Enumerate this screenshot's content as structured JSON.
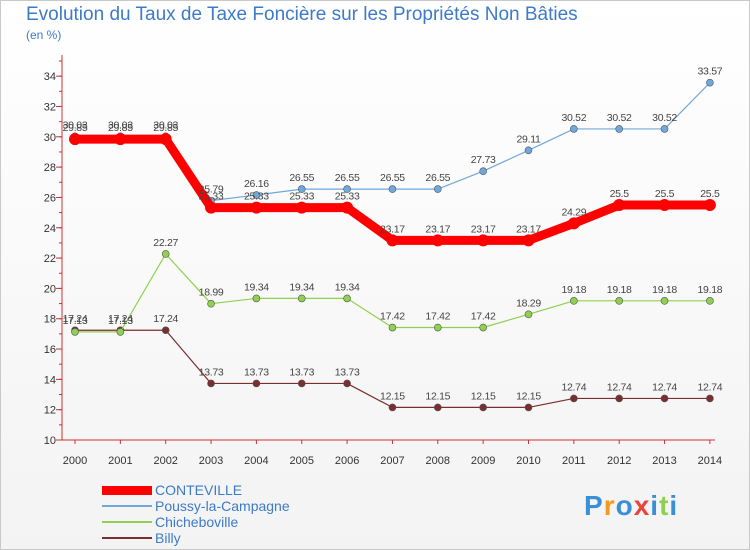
{
  "chart_data": {
    "type": "line",
    "title": "Evolution du Taux de Taxe Foncière sur les Propriétés Non Bâties",
    "ylabel": "(en %)",
    "xlabel": "",
    "ylim": [
      10,
      35
    ],
    "yticks": [
      10,
      12,
      14,
      16,
      18,
      20,
      22,
      24,
      26,
      28,
      30,
      32,
      34
    ],
    "categories": [
      "2000",
      "2001",
      "2002",
      "2003",
      "2004",
      "2005",
      "2006",
      "2007",
      "2008",
      "2009",
      "2010",
      "2011",
      "2012",
      "2013",
      "2014"
    ],
    "series": [
      {
        "name": "CONTEVILLE",
        "color": "#ff0000",
        "values": [
          29.85,
          29.85,
          29.85,
          25.33,
          25.33,
          25.33,
          25.33,
          23.17,
          23.17,
          23.17,
          23.17,
          24.29,
          25.5,
          25.5,
          25.5
        ],
        "labels": [
          "29.85",
          "29.85",
          "29.85",
          "25.33",
          "25.33",
          "25.33",
          "25.33",
          "23.17",
          "23.17",
          "23.17",
          "23.17",
          "24.29",
          "25.5",
          "25.5",
          "25.5"
        ]
      },
      {
        "name": "Poussy-la-Campagne",
        "color": "#6fa8dc",
        "values": [
          30.03,
          30.03,
          30.03,
          25.79,
          26.16,
          26.55,
          26.55,
          26.55,
          26.55,
          27.73,
          29.11,
          30.52,
          30.52,
          30.52,
          33.57
        ],
        "labels": [
          "30.03",
          "30.03",
          "30.03",
          "25.79",
          "26.16",
          "26.55",
          "26.55",
          "26.55",
          "26.55",
          "27.73",
          "29.11",
          "30.52",
          "30.52",
          "30.52",
          "33.57"
        ]
      },
      {
        "name": "Chicheboville",
        "color": "#8fd14f",
        "values": [
          17.13,
          17.13,
          22.27,
          18.99,
          19.34,
          19.34,
          19.34,
          17.42,
          17.42,
          17.42,
          18.29,
          19.18,
          19.18,
          19.18,
          19.18
        ],
        "labels": [
          "17.13",
          "17.13",
          "22.27",
          "18.99",
          "19.34",
          "19.34",
          "19.34",
          "17.42",
          "17.42",
          "17.42",
          "18.29",
          "19.18",
          "19.18",
          "19.18",
          "19.18"
        ]
      },
      {
        "name": "Billy",
        "color": "#7a2e2e",
        "values": [
          17.24,
          17.24,
          17.24,
          13.73,
          13.73,
          13.73,
          13.73,
          12.15,
          12.15,
          12.15,
          12.15,
          12.74,
          12.74,
          12.74,
          12.74
        ],
        "labels": [
          "17.24",
          "17.24",
          "17.24",
          "13.73",
          "13.73",
          "13.73",
          "13.73",
          "12.15",
          "12.15",
          "12.15",
          "12.15",
          "12.74",
          "12.74",
          "12.74",
          "12.74"
        ]
      }
    ]
  },
  "legend": [
    {
      "label": "CONTEVILLE",
      "color": "#ff0000",
      "text_color": "#3d7ac7"
    },
    {
      "label": "Poussy-la-Campagne",
      "color": "#6fa8dc",
      "text_color": "#3d7ac7"
    },
    {
      "label": "Chicheboville",
      "color": "#8fd14f",
      "text_color": "#3d7ac7"
    },
    {
      "label": "Billy",
      "color": "#7a2e2e",
      "text_color": "#3d7ac7"
    }
  ],
  "logo": {
    "text": "Proxiti",
    "letters": [
      "P",
      "r",
      "o",
      "x",
      "i",
      "t",
      "i"
    ],
    "colors": [
      "#3a8fd9",
      "#f39a1e",
      "#3a8fd9",
      "#e8453c",
      "#3a8fd9",
      "#8fd14f",
      "#3a8fd9"
    ]
  }
}
